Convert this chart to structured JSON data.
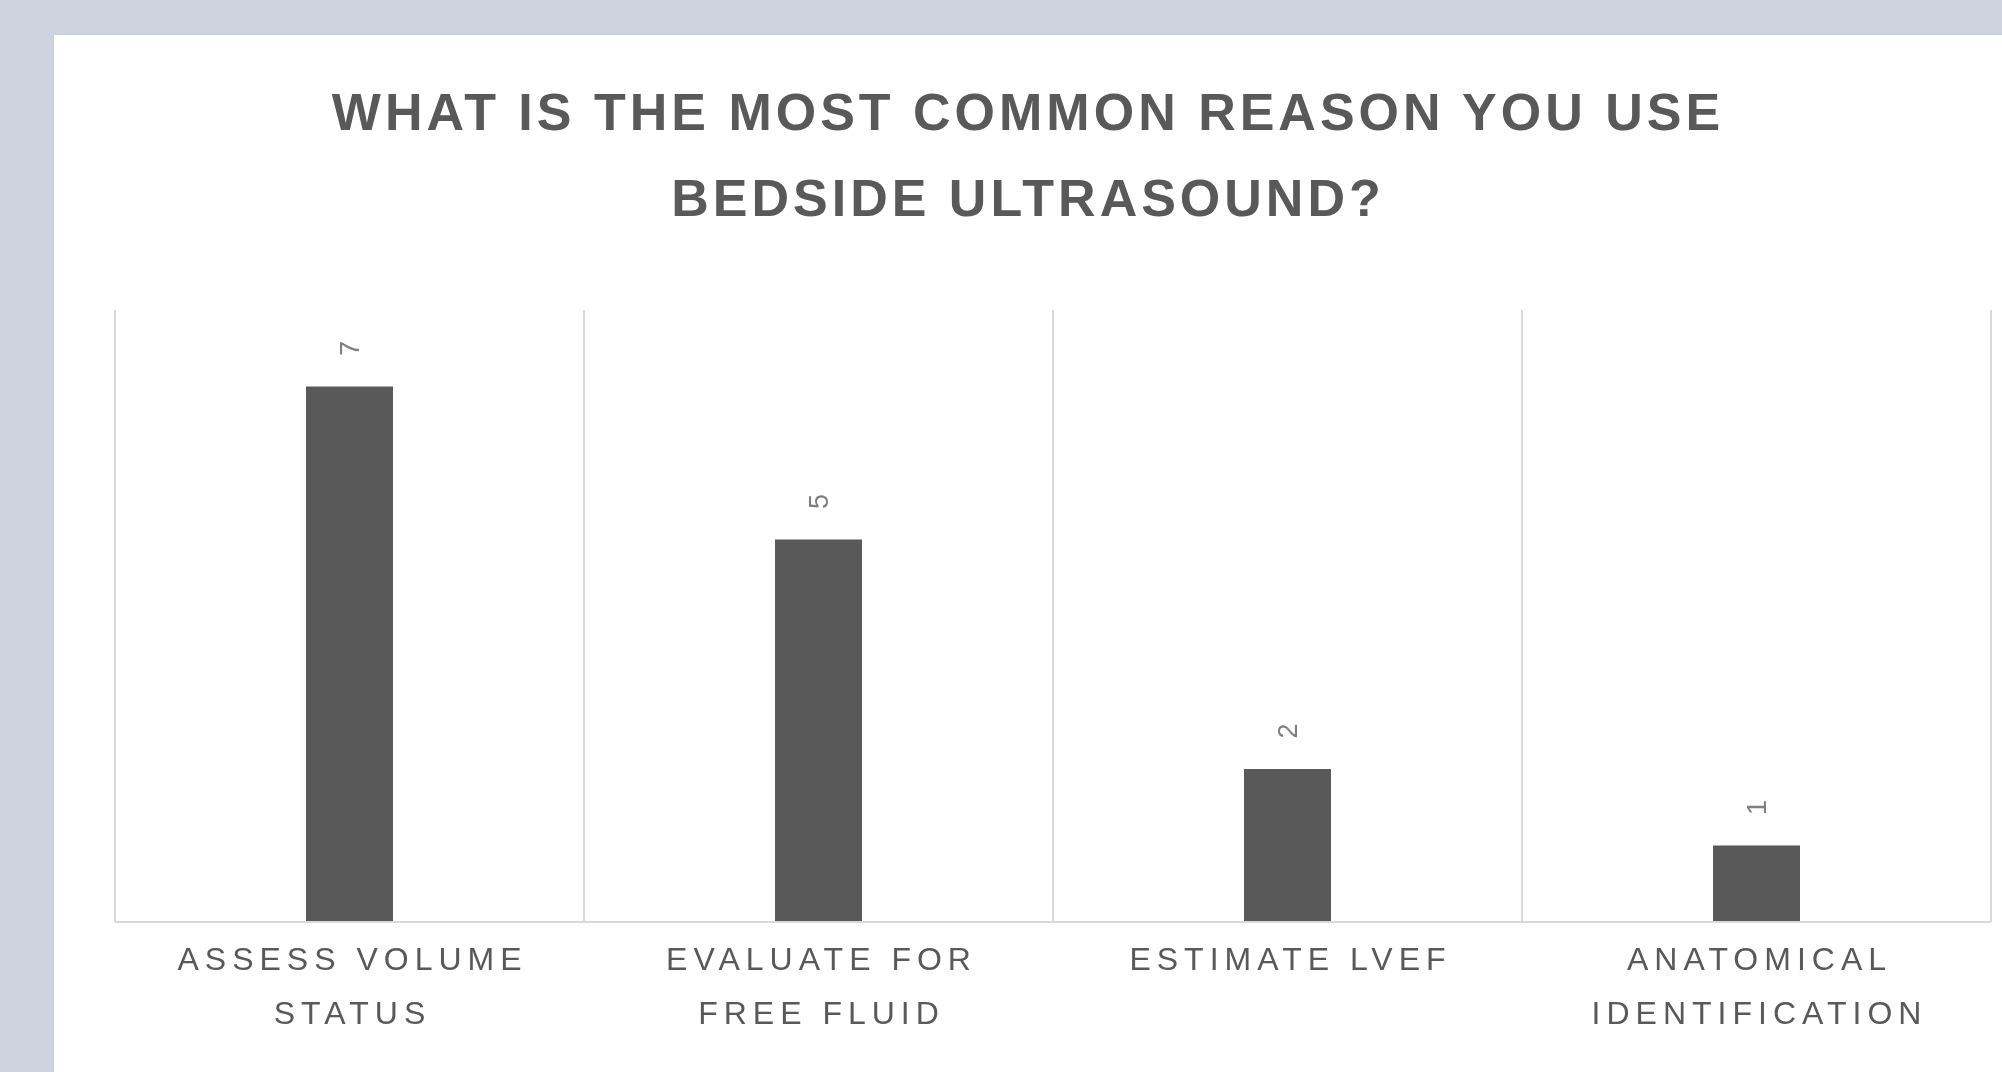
{
  "chart_data": {
    "type": "bar",
    "title": "WHAT IS THE MOST COMMON REASON YOU USE BEDSIDE ULTRASOUND?",
    "categories": [
      "ASSESS VOLUME STATUS",
      "EVALUATE FOR FREE FLUID",
      "ESTIMATE LVEF",
      "ANATOMICAL IDENTIFICATION"
    ],
    "values": [
      7,
      5,
      2,
      1
    ],
    "color": "#595959",
    "data_labels": true,
    "grid": "x"
  }
}
